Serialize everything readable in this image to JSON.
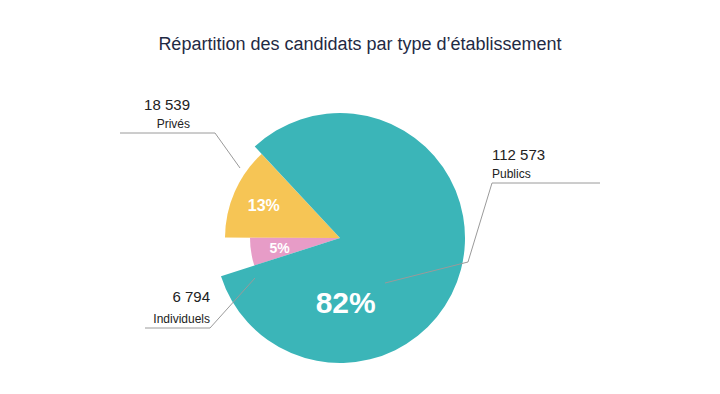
{
  "chart_data": {
    "type": "pie",
    "title": "Répartition des candidats par type d’établissement",
    "categories": [
      "Privés",
      "Individuels",
      "Publics"
    ],
    "values": [
      13,
      5,
      82
    ],
    "value_labels": [
      "13%",
      "5%",
      "82%"
    ],
    "counts": [
      18539,
      6794,
      112573
    ],
    "count_labels": [
      "18 539",
      "6 794",
      "112 573"
    ],
    "colors": [
      "#f6c555",
      "#e79cc7",
      "#3bb5b8"
    ],
    "data_labels": true
  }
}
